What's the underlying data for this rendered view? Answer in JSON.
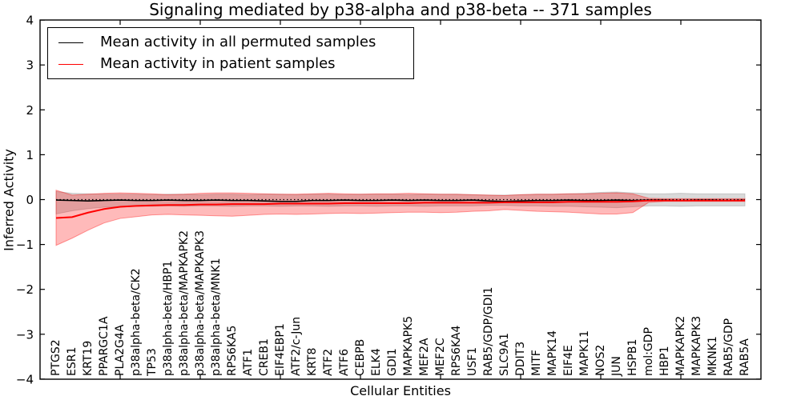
{
  "figure": {
    "title": "Signaling mediated by p38-alpha and p38-beta -- 371 samples",
    "xlabel": "Cellular Entities",
    "ylabel": "Inferred Activity"
  },
  "legend": {
    "items": [
      {
        "label": "Mean activity in all permuted samples",
        "color": "#000000"
      },
      {
        "label": "Mean activity in patient samples",
        "color": "#ff0000"
      }
    ]
  },
  "chart_data": {
    "type": "line",
    "title": "Signaling mediated by p38-alpha and p38-beta -- 371 samples",
    "xlabel": "Cellular Entities",
    "ylabel": "Inferred Activity",
    "ylim": [
      -4,
      4
    ],
    "xlim": [
      0,
      45
    ],
    "grid": false,
    "legend_position": "upper left",
    "yticks": [
      4,
      3,
      2,
      1,
      0,
      -1,
      -2,
      -3,
      -4
    ],
    "xticks": [
      5,
      10,
      15,
      20,
      25,
      30,
      35,
      40
    ],
    "categories": [
      "PTGS2",
      "ESR1",
      "KRT19",
      "PPARGC1A",
      "PLA2G4A",
      "p38alpha-beta/CK2",
      "TP53",
      "p38alpha-beta/HBP1",
      "p38alpha-beta/MAPKAPK2",
      "p38alpha-beta/MAPKAPK3",
      "p38alpha-beta/MNK1",
      "RPS6KA5",
      "ATF1",
      "CREB1",
      "EIF4EBP1",
      "ATF2/c-Jun",
      "KRT8",
      "ATF2",
      "ATF6",
      "CEBPB",
      "ELK4",
      "GDI1",
      "MAPKAPK5",
      "MEF2A",
      "MEF2C",
      "RPS6KA4",
      "USF1",
      "RAB5/GDP/GDI1",
      "SLC9A1",
      "DDIT3",
      "MITF",
      "MAPK14",
      "EIF4E",
      "MAPK11",
      "NOS2",
      "JUN",
      "HSPB1",
      "mol:GDP",
      "HBP1",
      "MAPKAPK2",
      "MAPKAPK3",
      "MKNK1",
      "RAB5/GDP",
      "RAB5A"
    ],
    "series": [
      {
        "id": "permuted-band",
        "name": "Permuted samples activity range",
        "type": "band",
        "fill": "rgba(128,128,128,0.30)",
        "edge": "rgba(128,128,128,0.35)",
        "upper": [
          0.18,
          0.14,
          0.13,
          0.12,
          0.12,
          0.12,
          0.11,
          0.12,
          0.12,
          0.11,
          0.12,
          0.12,
          0.11,
          0.12,
          0.12,
          0.11,
          0.12,
          0.12,
          0.11,
          0.12,
          0.12,
          0.12,
          0.11,
          0.12,
          0.12,
          0.12,
          0.11,
          0.1,
          0.1,
          0.11,
          0.12,
          0.12,
          0.13,
          0.14,
          0.16,
          0.17,
          0.15,
          0.13,
          0.13,
          0.14,
          0.13,
          0.13,
          0.13,
          0.13
        ],
        "lower": [
          -0.32,
          -0.25,
          -0.2,
          -0.17,
          -0.16,
          -0.15,
          -0.15,
          -0.14,
          -0.15,
          -0.14,
          -0.14,
          -0.15,
          -0.14,
          -0.14,
          -0.15,
          -0.14,
          -0.14,
          -0.15,
          -0.14,
          -0.14,
          -0.15,
          -0.14,
          -0.14,
          -0.15,
          -0.14,
          -0.14,
          -0.14,
          -0.13,
          -0.13,
          -0.14,
          -0.14,
          -0.15,
          -0.15,
          -0.16,
          -0.17,
          -0.18,
          -0.16,
          -0.14,
          -0.14,
          -0.15,
          -0.14,
          -0.14,
          -0.14,
          -0.14
        ]
      },
      {
        "id": "patient-band",
        "name": "Patient samples activity range",
        "type": "band",
        "fill": "rgba(255,0,0,0.27)",
        "edge": "rgba(255,0,0,0.38)",
        "upper": [
          0.21,
          0.1,
          0.12,
          0.14,
          0.15,
          0.14,
          0.13,
          0.11,
          0.12,
          0.14,
          0.15,
          0.15,
          0.14,
          0.13,
          0.12,
          0.12,
          0.13,
          0.14,
          0.13,
          0.12,
          0.13,
          0.13,
          0.14,
          0.13,
          0.12,
          0.12,
          0.11,
          0.1,
          0.09,
          0.11,
          0.12,
          0.12,
          0.13,
          0.13,
          0.14,
          0.15,
          0.13,
          0.03,
          0.02,
          0.02,
          0.02,
          0.02,
          0.02,
          0.02
        ],
        "lower": [
          -1.02,
          -0.86,
          -0.68,
          -0.52,
          -0.42,
          -0.38,
          -0.34,
          -0.33,
          -0.34,
          -0.35,
          -0.36,
          -0.37,
          -0.35,
          -0.33,
          -0.32,
          -0.33,
          -0.32,
          -0.31,
          -0.3,
          -0.31,
          -0.3,
          -0.29,
          -0.28,
          -0.28,
          -0.29,
          -0.28,
          -0.26,
          -0.25,
          -0.22,
          -0.24,
          -0.26,
          -0.27,
          -0.28,
          -0.3,
          -0.32,
          -0.32,
          -0.29,
          -0.06,
          -0.04,
          -0.04,
          -0.04,
          -0.04,
          -0.04,
          -0.04
        ]
      },
      {
        "id": "permuted-mean",
        "name": "Mean activity in all permuted samples",
        "type": "line",
        "color": "#000000",
        "width": 1.6,
        "values": [
          -0.01,
          -0.02,
          -0.03,
          -0.02,
          -0.01,
          -0.02,
          -0.02,
          -0.01,
          -0.02,
          -0.02,
          -0.01,
          -0.02,
          -0.02,
          -0.03,
          -0.04,
          -0.04,
          -0.02,
          -0.02,
          -0.01,
          -0.02,
          -0.02,
          -0.01,
          -0.02,
          -0.01,
          -0.02,
          -0.02,
          -0.01,
          -0.03,
          -0.04,
          -0.03,
          -0.02,
          -0.02,
          -0.01,
          -0.02,
          -0.02,
          -0.01,
          -0.02,
          -0.01,
          -0.01,
          -0.02,
          -0.01,
          -0.01,
          -0.02,
          -0.01
        ]
      },
      {
        "id": "patient-mean",
        "name": "Mean activity in patient samples",
        "type": "line",
        "color": "#ff0000",
        "width": 2,
        "values": [
          -0.41,
          -0.39,
          -0.29,
          -0.21,
          -0.16,
          -0.14,
          -0.13,
          -0.12,
          -0.12,
          -0.11,
          -0.11,
          -0.1,
          -0.1,
          -0.1,
          -0.09,
          -0.09,
          -0.09,
          -0.09,
          -0.08,
          -0.08,
          -0.08,
          -0.08,
          -0.08,
          -0.07,
          -0.07,
          -0.07,
          -0.07,
          -0.07,
          -0.06,
          -0.06,
          -0.06,
          -0.06,
          -0.05,
          -0.05,
          -0.05,
          -0.05,
          -0.04,
          -0.02,
          -0.02,
          -0.02,
          -0.02,
          -0.02,
          -0.02,
          -0.02
        ]
      }
    ],
    "zero_line": {
      "y": 0,
      "color": "#000000",
      "style": "dotted"
    }
  }
}
